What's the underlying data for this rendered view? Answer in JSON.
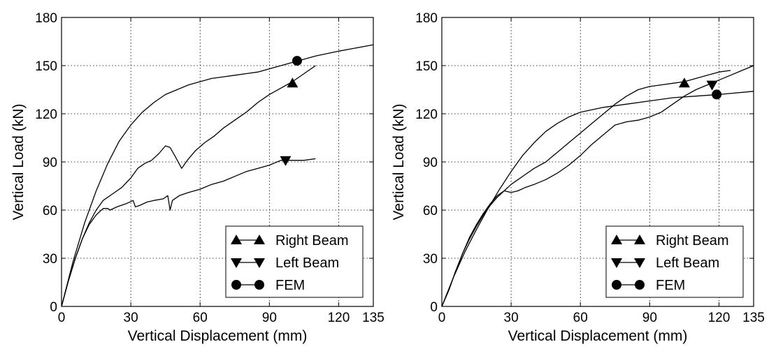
{
  "chart_data": [
    {
      "type": "line",
      "xlabel": "Vertical Displacement (mm)",
      "ylabel": "Vertical Load (kN)",
      "xlim": [
        0,
        135
      ],
      "ylim": [
        0,
        180
      ],
      "xticks": [
        0,
        30,
        60,
        90,
        120,
        135
      ],
      "yticks": [
        0,
        30,
        60,
        90,
        120,
        150,
        180
      ],
      "grid": true,
      "legend_position": "bottom-right",
      "series": [
        {
          "name": "Right Beam",
          "marker": "triangle-up",
          "marker_point": [
            100,
            139
          ],
          "points": [
            [
              0,
              0
            ],
            [
              3,
              16
            ],
            [
              6,
              30
            ],
            [
              9,
              42
            ],
            [
              12,
              52
            ],
            [
              15,
              60
            ],
            [
              18,
              66
            ],
            [
              22,
              70
            ],
            [
              26,
              74
            ],
            [
              30,
              80
            ],
            [
              33,
              86
            ],
            [
              36,
              89
            ],
            [
              39,
              91
            ],
            [
              42,
              95
            ],
            [
              45,
              100
            ],
            [
              47,
              99
            ],
            [
              49,
              94
            ],
            [
              52,
              86
            ],
            [
              55,
              92
            ],
            [
              58,
              97
            ],
            [
              62,
              102
            ],
            [
              66,
              106
            ],
            [
              70,
              111
            ],
            [
              75,
              116
            ],
            [
              80,
              121
            ],
            [
              85,
              127
            ],
            [
              90,
              132
            ],
            [
              95,
              136
            ],
            [
              100,
              140
            ],
            [
              105,
              145
            ],
            [
              110,
              150
            ]
          ]
        },
        {
          "name": "Left Beam",
          "marker": "triangle-down",
          "marker_point": [
            97,
            91
          ],
          "points": [
            [
              0,
              0
            ],
            [
              3,
              16
            ],
            [
              6,
              30
            ],
            [
              9,
              42
            ],
            [
              12,
              51
            ],
            [
              15,
              57
            ],
            [
              18,
              61
            ],
            [
              20,
              61
            ],
            [
              21,
              60
            ],
            [
              24,
              62
            ],
            [
              28,
              64
            ],
            [
              31,
              66
            ],
            [
              32,
              62
            ],
            [
              34,
              63
            ],
            [
              37,
              65
            ],
            [
              40,
              66
            ],
            [
              44,
              67
            ],
            [
              46,
              69
            ],
            [
              47,
              60
            ],
            [
              48,
              66
            ],
            [
              51,
              69
            ],
            [
              55,
              71
            ],
            [
              60,
              73
            ],
            [
              65,
              76
            ],
            [
              70,
              78
            ],
            [
              75,
              81
            ],
            [
              80,
              84
            ],
            [
              85,
              86
            ],
            [
              90,
              88
            ],
            [
              95,
              91
            ],
            [
              97,
              91
            ],
            [
              100,
              91
            ],
            [
              105,
              91
            ],
            [
              110,
              92
            ]
          ]
        },
        {
          "name": "FEM",
          "marker": "circle",
          "marker_point": [
            102,
            153
          ],
          "points": [
            [
              0,
              0
            ],
            [
              5,
              28
            ],
            [
              10,
              52
            ],
            [
              15,
              72
            ],
            [
              20,
              89
            ],
            [
              25,
              103
            ],
            [
              30,
              113
            ],
            [
              35,
              121
            ],
            [
              40,
              127
            ],
            [
              45,
              132
            ],
            [
              50,
              135
            ],
            [
              55,
              138
            ],
            [
              60,
              140
            ],
            [
              65,
              142
            ],
            [
              70,
              143
            ],
            [
              75,
              144
            ],
            [
              80,
              145
            ],
            [
              85,
              146
            ],
            [
              90,
              148
            ],
            [
              95,
              150
            ],
            [
              100,
              152
            ],
            [
              110,
              156
            ],
            [
              120,
              159
            ],
            [
              135,
              163
            ]
          ]
        }
      ]
    },
    {
      "type": "line",
      "xlabel": "Vertical Displacement (mm)",
      "ylabel": "Vertical Load (kN)",
      "xlim": [
        0,
        135
      ],
      "ylim": [
        0,
        180
      ],
      "xticks": [
        0,
        30,
        60,
        90,
        120,
        135
      ],
      "yticks": [
        0,
        30,
        60,
        90,
        120,
        150,
        180
      ],
      "grid": true,
      "legend_position": "bottom-right",
      "series": [
        {
          "name": "Right Beam",
          "marker": "triangle-up",
          "marker_point": [
            105,
            139
          ],
          "points": [
            [
              0,
              0
            ],
            [
              3,
              10
            ],
            [
              6,
              22
            ],
            [
              9,
              33
            ],
            [
              12,
              42
            ],
            [
              15,
              50
            ],
            [
              18,
              57
            ],
            [
              21,
              63
            ],
            [
              24,
              68
            ],
            [
              27,
              72
            ],
            [
              30,
              76
            ],
            [
              33,
              79
            ],
            [
              36,
              82
            ],
            [
              40,
              86
            ],
            [
              45,
              90
            ],
            [
              50,
              96
            ],
            [
              55,
              102
            ],
            [
              60,
              108
            ],
            [
              65,
              114
            ],
            [
              70,
              120
            ],
            [
              75,
              126
            ],
            [
              80,
              131
            ],
            [
              85,
              135
            ],
            [
              90,
              137
            ],
            [
              95,
              138
            ],
            [
              100,
              139
            ],
            [
              105,
              140
            ],
            [
              110,
              142
            ],
            [
              115,
              144
            ],
            [
              120,
              146
            ],
            [
              125,
              147
            ]
          ]
        },
        {
          "name": "Left Beam",
          "marker": "triangle-down",
          "marker_point": [
            117,
            138
          ],
          "points": [
            [
              0,
              0
            ],
            [
              3,
              10
            ],
            [
              6,
              22
            ],
            [
              9,
              33
            ],
            [
              12,
              43
            ],
            [
              15,
              51
            ],
            [
              18,
              58
            ],
            [
              21,
              64
            ],
            [
              24,
              69
            ],
            [
              27,
              72
            ],
            [
              30,
              71
            ],
            [
              33,
              72
            ],
            [
              36,
              74
            ],
            [
              40,
              76
            ],
            [
              45,
              79
            ],
            [
              50,
              83
            ],
            [
              55,
              88
            ],
            [
              60,
              94
            ],
            [
              65,
              101
            ],
            [
              70,
              107
            ],
            [
              75,
              113
            ],
            [
              80,
              115
            ],
            [
              85,
              116
            ],
            [
              90,
              118
            ],
            [
              95,
              121
            ],
            [
              100,
              126
            ],
            [
              105,
              131
            ],
            [
              110,
              135
            ],
            [
              115,
              138
            ],
            [
              120,
              141
            ],
            [
              125,
              144
            ],
            [
              130,
              147
            ],
            [
              135,
              150
            ]
          ]
        },
        {
          "name": "FEM",
          "marker": "circle",
          "marker_point": [
            119,
            132
          ],
          "points": [
            [
              0,
              0
            ],
            [
              5,
              18
            ],
            [
              10,
              34
            ],
            [
              15,
              48
            ],
            [
              20,
              61
            ],
            [
              25,
              73
            ],
            [
              30,
              84
            ],
            [
              35,
              94
            ],
            [
              40,
              102
            ],
            [
              45,
              109
            ],
            [
              50,
              114
            ],
            [
              55,
              118
            ],
            [
              60,
              121
            ],
            [
              70,
              124
            ],
            [
              80,
              126
            ],
            [
              90,
              128
            ],
            [
              100,
              130
            ],
            [
              110,
              131
            ],
            [
              120,
              132
            ],
            [
              135,
              134
            ]
          ]
        }
      ]
    }
  ]
}
